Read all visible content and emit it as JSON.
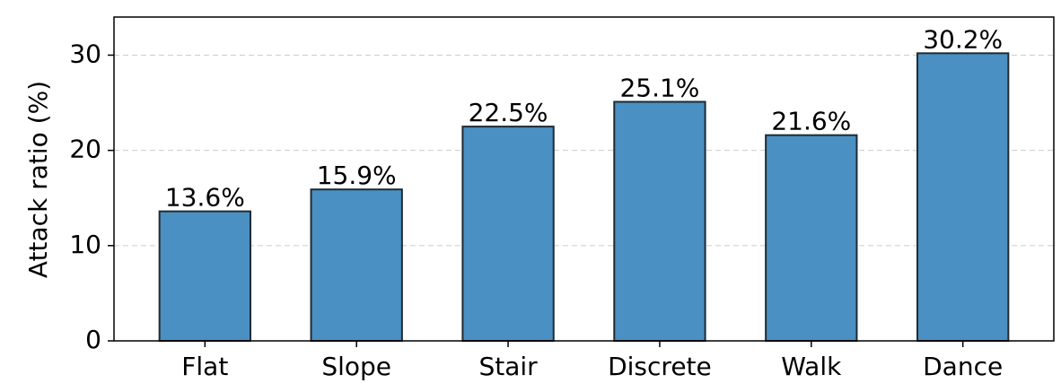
{
  "chart_data": {
    "type": "bar",
    "y_label": "Attack ratio (%)",
    "categories": [
      "Flat",
      "Slope",
      "Stair",
      "Discrete",
      "Walk",
      "Dance"
    ],
    "values": [
      13.6,
      15.9,
      22.5,
      25.1,
      21.6,
      30.2
    ],
    "value_labels": [
      "13.6%",
      "15.9%",
      "22.5%",
      "25.1%",
      "21.6%",
      "30.2%"
    ],
    "color": "#4a90c2",
    "edge_color": "#1f2a33",
    "ylim": [
      0,
      34
    ],
    "yticks": [
      0,
      10,
      20,
      30
    ],
    "grid": true
  }
}
